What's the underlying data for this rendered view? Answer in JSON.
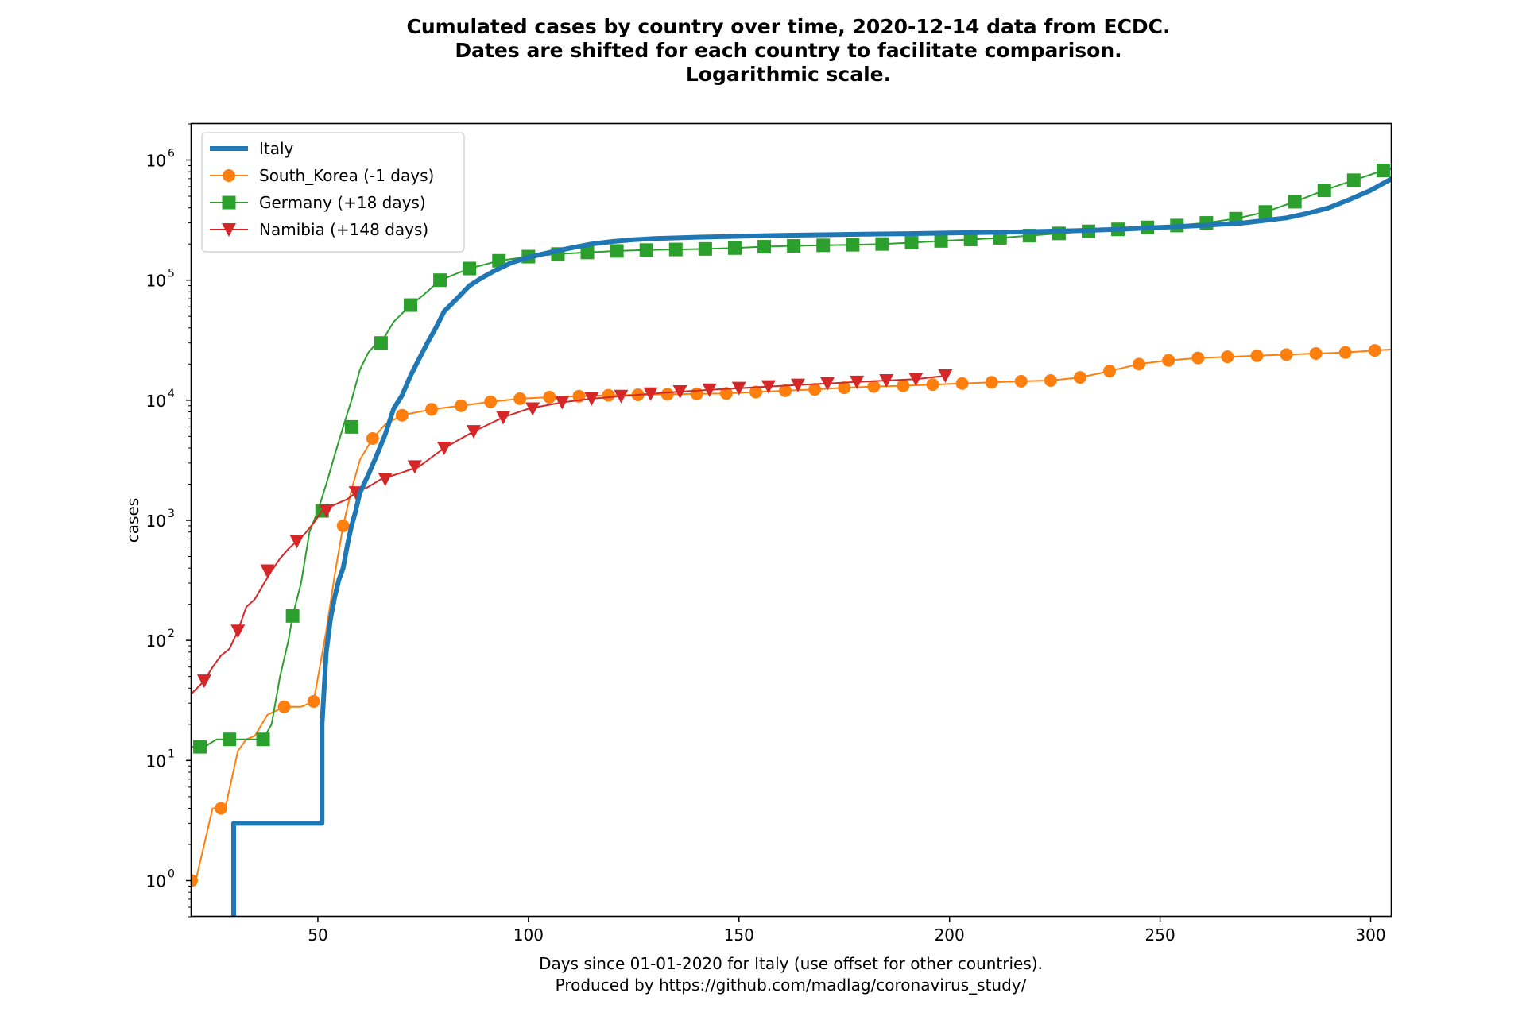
{
  "chart_data": {
    "type": "line",
    "title": [
      "Cumulated cases by country over time, 2020-12-14 data from ECDC.",
      "Dates are shifted for each country to facilitate comparison.",
      "Logarithmic scale."
    ],
    "xlabel": [
      "Days since 01-01-2020 for Italy (use offset for other countries).",
      "Produced by https://github.com/madlag/coronavirus_study/"
    ],
    "ylabel": "cases",
    "xscale": "linear",
    "yscale": "log",
    "xlim": [
      20,
      305
    ],
    "ylim": [
      0.5,
      2000000
    ],
    "xticks": [
      50,
      100,
      150,
      200,
      250,
      300
    ],
    "yticks": [
      {
        "value": 1,
        "base": "10",
        "exp": "0"
      },
      {
        "value": 10,
        "base": "10",
        "exp": "1"
      },
      {
        "value": 100,
        "base": "10",
        "exp": "2"
      },
      {
        "value": 1000,
        "base": "10",
        "exp": "3"
      },
      {
        "value": 10000,
        "base": "10",
        "exp": "4"
      },
      {
        "value": 100000,
        "base": "10",
        "exp": "5"
      },
      {
        "value": 1000000,
        "base": "10",
        "exp": "6"
      }
    ],
    "grid": false,
    "legend_position": "top-left",
    "series": [
      {
        "name": "Italy",
        "color": "#1f77b4",
        "marker": "none",
        "line_width": "thick",
        "x": [
          30,
          30,
          51,
          51,
          52,
          53,
          54,
          55,
          56,
          57,
          58,
          59,
          60,
          62,
          64,
          66,
          68,
          70,
          72,
          74,
          76,
          78,
          80,
          83,
          86,
          89,
          92,
          96,
          100,
          105,
          110,
          115,
          120,
          125,
          130,
          140,
          150,
          160,
          170,
          180,
          190,
          200,
          210,
          220,
          230,
          240,
          250,
          260,
          270,
          280,
          285,
          290,
          295,
          300,
          305
        ],
        "y": [
          0.5,
          3,
          3,
          20,
          80,
          150,
          230,
          320,
          400,
          620,
          900,
          1200,
          1700,
          2400,
          3500,
          5200,
          8500,
          11000,
          16000,
          22000,
          30000,
          40000,
          55000,
          70000,
          90000,
          105000,
          120000,
          140000,
          155000,
          170000,
          185000,
          200000,
          210000,
          217000,
          222000,
          228000,
          232000,
          236000,
          239000,
          242000,
          244000,
          247000,
          250000,
          254000,
          258000,
          265000,
          275000,
          285000,
          300000,
          330000,
          360000,
          400000,
          470000,
          560000,
          700000
        ]
      },
      {
        "name": "South_Korea (-1 days)",
        "color": "#ff7f0e",
        "marker": "circle",
        "line_width": "thin",
        "x": [
          20,
          21,
          23,
          25,
          28,
          31,
          33,
          35,
          38,
          42,
          46,
          49,
          52,
          54,
          56,
          58,
          60,
          63,
          66,
          70,
          77,
          84,
          91,
          98,
          105,
          112,
          119,
          126,
          133,
          140,
          147,
          154,
          161,
          168,
          175,
          182,
          189,
          196,
          203,
          210,
          217,
          224,
          231,
          238,
          245,
          252,
          259,
          266,
          273,
          280,
          287,
          294,
          301,
          305
        ],
        "y": [
          1,
          1,
          2,
          4,
          4,
          12,
          15,
          16,
          24,
          28,
          28,
          31,
          120,
          350,
          900,
          1800,
          3200,
          4800,
          6300,
          7500,
          8400,
          9000,
          9700,
          10300,
          10600,
          10800,
          11000,
          11100,
          11200,
          11300,
          11400,
          11700,
          12000,
          12300,
          12700,
          13000,
          13200,
          13500,
          13800,
          14100,
          14400,
          14600,
          15500,
          17500,
          20000,
          21500,
          22500,
          23000,
          23500,
          24000,
          24500,
          25000,
          26000,
          26500
        ],
        "marker_x": [
          20,
          27,
          42,
          49,
          56,
          63,
          70,
          77,
          84,
          91,
          98,
          105,
          112,
          119,
          126,
          133,
          140,
          147,
          154,
          161,
          168,
          175,
          182,
          189,
          196,
          203,
          210,
          217,
          224,
          231,
          238,
          245,
          252,
          259,
          266,
          273,
          280,
          287,
          294,
          301
        ],
        "marker_y": [
          1,
          4,
          28,
          31,
          900,
          4800,
          7500,
          8400,
          9000,
          9700,
          10300,
          10600,
          10800,
          11000,
          11100,
          11200,
          11300,
          11400,
          11700,
          12000,
          12300,
          12700,
          13000,
          13200,
          13500,
          13800,
          14100,
          14400,
          14600,
          15500,
          17500,
          20000,
          21500,
          22500,
          23000,
          23500,
          24000,
          24500,
          25000,
          26000
        ]
      },
      {
        "name": "Germany (+18 days)",
        "color": "#2ca02c",
        "marker": "square",
        "line_width": "thin",
        "x": [
          20,
          23,
          26,
          29,
          32,
          35,
          37,
          39,
          41,
          43,
          44,
          46,
          48,
          50,
          52,
          54,
          56,
          58,
          60,
          62,
          64,
          65,
          68,
          72,
          75,
          79,
          86,
          93,
          100,
          107,
          114,
          121,
          128,
          135,
          142,
          149,
          156,
          163,
          170,
          177,
          184,
          191,
          198,
          205,
          212,
          219,
          226,
          233,
          240,
          247,
          254,
          261,
          268,
          275,
          282,
          289,
          296,
          303,
          305
        ],
        "y": [
          13,
          13,
          15,
          15,
          15,
          15,
          15,
          20,
          50,
          100,
          160,
          300,
          800,
          1200,
          2000,
          3500,
          6000,
          10000,
          18000,
          25000,
          30000,
          30000,
          45000,
          62000,
          75000,
          100000,
          125000,
          145000,
          157000,
          165000,
          170000,
          175000,
          178000,
          180000,
          182000,
          185000,
          190000,
          193000,
          195000,
          197000,
          200000,
          205000,
          212000,
          218000,
          225000,
          235000,
          245000,
          255000,
          265000,
          275000,
          285000,
          300000,
          325000,
          370000,
          450000,
          560000,
          680000,
          820000,
          850000
        ],
        "marker_x": [
          22,
          29,
          37,
          44,
          51,
          58,
          65,
          72,
          79,
          86,
          93,
          100,
          107,
          114,
          121,
          128,
          135,
          142,
          149,
          156,
          163,
          170,
          177,
          184,
          191,
          198,
          205,
          212,
          219,
          226,
          233,
          240,
          247,
          254,
          261,
          268,
          275,
          282,
          289,
          296,
          303
        ],
        "marker_y": [
          13,
          15,
          15,
          160,
          1200,
          6000,
          30000,
          62000,
          100000,
          125000,
          145000,
          157000,
          165000,
          170000,
          175000,
          178000,
          180000,
          182000,
          185000,
          190000,
          193000,
          195000,
          197000,
          200000,
          205000,
          212000,
          218000,
          225000,
          235000,
          245000,
          255000,
          265000,
          275000,
          285000,
          300000,
          325000,
          370000,
          450000,
          560000,
          680000,
          820000
        ]
      },
      {
        "name": "Namibia (+148 days)",
        "color": "#d62728",
        "marker": "triangle-down",
        "line_width": "thin",
        "x": [
          20,
          23,
          25,
          27,
          29,
          31,
          33,
          35,
          37,
          39,
          41,
          43,
          45,
          47,
          49,
          51,
          53,
          55,
          57,
          59,
          62,
          65,
          70,
          74,
          80,
          87,
          94,
          100,
          108,
          115,
          122,
          129,
          136,
          143,
          150,
          157,
          164,
          171,
          178,
          185,
          192,
          199
        ],
        "y": [
          36,
          46,
          60,
          75,
          85,
          120,
          190,
          220,
          290,
          380,
          480,
          580,
          670,
          780,
          950,
          1200,
          1300,
          1400,
          1500,
          1700,
          1900,
          2200,
          2500,
          2800,
          4000,
          5500,
          7200,
          8500,
          9600,
          10300,
          10800,
          11300,
          11800,
          12200,
          12600,
          13000,
          13400,
          13800,
          14200,
          14600,
          15000,
          16000
        ],
        "marker_x": [
          23,
          31,
          38,
          45,
          52,
          59,
          66,
          73,
          80,
          87,
          94,
          101,
          108,
          115,
          122,
          129,
          136,
          143,
          150,
          157,
          164,
          171,
          178,
          185,
          192,
          199
        ],
        "marker_y": [
          46,
          120,
          380,
          670,
          1200,
          1700,
          2200,
          2800,
          4000,
          5500,
          7200,
          8500,
          9600,
          10300,
          10800,
          11300,
          11800,
          12200,
          12600,
          13000,
          13400,
          13800,
          14200,
          14600,
          15000,
          16000
        ]
      }
    ]
  }
}
